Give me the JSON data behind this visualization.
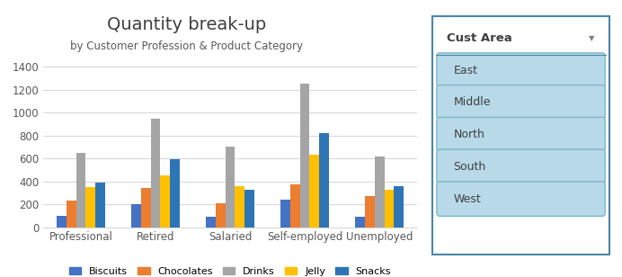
{
  "title": "Quantity break-up",
  "subtitle": "by Customer Profession & Product Category",
  "categories": [
    "Professional",
    "Retired",
    "Salaried",
    "Self-employed",
    "Unemployed"
  ],
  "series": {
    "Biscuits": [
      100,
      200,
      90,
      240,
      90
    ],
    "Chocolates": [
      230,
      340,
      210,
      370,
      270
    ],
    "Drinks": [
      650,
      950,
      700,
      1250,
      615
    ],
    "Jelly": [
      350,
      450,
      360,
      635,
      330
    ],
    "Snacks": [
      390,
      595,
      330,
      825,
      355
    ]
  },
  "series_colors": [
    "#4472c4",
    "#ed7d31",
    "#a5a5a5",
    "#ffc000",
    "#2e75b6"
  ],
  "ylim": [
    0,
    1500
  ],
  "yticks": [
    0,
    200,
    400,
    600,
    800,
    1000,
    1200,
    1400
  ],
  "slicer_title": "Cust Area",
  "slicer_items": [
    "East",
    "Middle",
    "North",
    "South",
    "West"
  ],
  "bg_color": "#ffffff",
  "plot_bg": "#ffffff",
  "grid_color": "#d9d9d9",
  "slicer_item_bg": "#b8d9e8",
  "slicer_border_color": "#4a86a8",
  "slicer_item_border": "#7ab8cc"
}
